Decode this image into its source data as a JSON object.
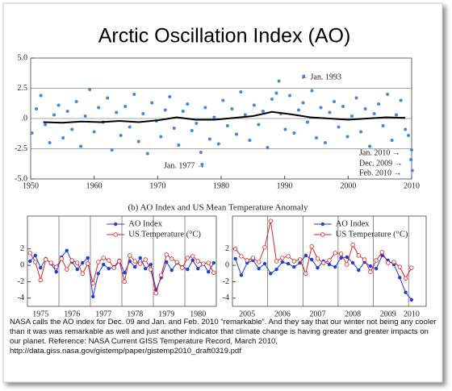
{
  "title": "Arctic Oscillation Index (AO)",
  "subtitle": "(b)  AO Index and US Mean Temperature Anomaly",
  "caption": "NASA calls the AO index for Dec. 09 and Jan. and Feb. 2010 “remarkable”. And they say that our winter not being any cooler than it was was remarkable as well and just another indicator that climate change is having greater and greater impacts on our planet.  Reference: NASA Current GISS Temperature Record, March 2010, http://data.giss.nasa.gov/gistemp/paper/gistemp2010_draft0319.pdf",
  "chart_data": [
    {
      "type": "scatter",
      "color": "#3d8ae0",
      "grid": true,
      "xlim": [
        1950,
        2010
      ],
      "xticks": [
        1950,
        1960,
        1970,
        1980,
        1990,
        2000,
        2010
      ],
      "ylim": [
        -5,
        5
      ],
      "yticks": [
        {
          "value": 5,
          "label": "5.0"
        },
        {
          "value": 2.5,
          "label": "2.5"
        },
        {
          "value": 0,
          "label": ".0"
        },
        {
          "value": -2.5,
          "label": "-2.5"
        },
        {
          "value": -5,
          "label": "-5.0"
        }
      ],
      "x": [
        1950.2,
        1950.9,
        1951.6,
        1952.3,
        1953.0,
        1953.7,
        1954.4,
        1955.1,
        1955.8,
        1956.5,
        1957.2,
        1957.9,
        1958.6,
        1959.3,
        1960.0,
        1960.7,
        1961.4,
        1962.1,
        1962.8,
        1963.5,
        1964.2,
        1964.9,
        1965.6,
        1966.3,
        1967.0,
        1967.7,
        1968.4,
        1969.1,
        1969.8,
        1970.5,
        1971.2,
        1971.9,
        1972.6,
        1973.3,
        1974.0,
        1974.7,
        1975.4,
        1976.1,
        1976.8,
        1977.5,
        1978.2,
        1978.9,
        1979.6,
        1980.3,
        1981.0,
        1981.7,
        1982.4,
        1983.1,
        1983.8,
        1984.5,
        1985.2,
        1985.9,
        1986.6,
        1987.3,
        1988.0,
        1988.7,
        1989.4,
        1990.1,
        1990.8,
        1991.5,
        1992.2,
        1992.9,
        1993.6,
        1994.3,
        1995.0,
        1995.7,
        1996.4,
        1997.1,
        1997.8,
        1998.5,
        1999.2,
        1999.9,
        2000.6,
        2001.3,
        2002.0,
        2002.7,
        2003.4,
        2004.1,
        2004.8,
        2005.5,
        2006.2,
        2006.9,
        2007.6,
        2008.3,
        2009.0,
        2009.5,
        1977.0,
        1989.1,
        1993.0,
        2009.9,
        2010.0,
        2010.1
      ],
      "values": [
        -1.2,
        0.8,
        1.9,
        -0.5,
        -2.0,
        0.3,
        1.1,
        -1.6,
        0.6,
        -0.9,
        1.4,
        -2.3,
        0.2,
        2.4,
        -1.1,
        0.9,
        -0.3,
        1.7,
        -2.6,
        0.5,
        -1.4,
        1.0,
        -0.7,
        2.0,
        -1.9,
        0.4,
        -2.9,
        1.3,
        -0.2,
        -1.5,
        0.7,
        1.8,
        -0.8,
        -2.2,
        0.6,
        1.2,
        -1.0,
        -0.4,
        -2.8,
        0.9,
        -1.7,
        0.1,
        -2.1,
        1.5,
        -0.6,
        0.8,
        -1.3,
        2.2,
        0.3,
        -1.8,
        1.1,
        -0.5,
        0.6,
        -2.4,
        1.6,
        2.1,
        0.4,
        -0.9,
        1.9,
        -1.2,
        0.7,
        1.3,
        -0.3,
        2.3,
        -1.6,
        0.9,
        -2.0,
        0.5,
        1.4,
        -0.7,
        1.0,
        -1.5,
        0.2,
        1.7,
        -1.1,
        0.8,
        -2.3,
        0.4,
        1.2,
        -0.6,
        2.0,
        -1.8,
        0.3,
        1.5,
        -0.9,
        -1.4,
        -3.8,
        3.1,
        3.5,
        -3.4,
        -2.6,
        -4.3
      ],
      "trend": {
        "color": "#000000",
        "x": [
          1952,
          1955,
          1958,
          1961,
          1964,
          1967,
          1970,
          1973,
          1976,
          1979,
          1982,
          1985,
          1988,
          1991,
          1994,
          1997,
          2000,
          2003,
          2006,
          2009
        ],
        "values": [
          -0.3,
          -0.35,
          -0.25,
          -0.3,
          -0.2,
          -0.3,
          -0.15,
          0.1,
          -0.1,
          -0.1,
          0.05,
          0.2,
          0.55,
          0.35,
          0.1,
          0.0,
          -0.1,
          0.0,
          0.1,
          0.05
        ]
      },
      "annotations": [
        "← Jan. 1993",
        "Jan. 1977 →",
        "Jan. 2010 →",
        "Dec. 2009 →",
        "Feb. 2010 →"
      ]
    },
    {
      "type": "line",
      "legend": "upper right",
      "ylim": [
        -5,
        6
      ],
      "yticks": [
        2,
        0,
        -2,
        -4
      ],
      "categories": [
        null,
        null,
        "1975",
        null,
        null,
        null,
        null,
        null,
        "1976",
        null,
        null,
        null,
        null,
        null,
        "1977",
        null,
        null,
        null,
        null,
        null,
        "1978",
        null,
        null,
        null,
        null,
        null,
        "1979",
        null,
        null,
        null,
        null,
        null,
        "1980",
        null,
        null,
        null
      ],
      "series": [
        {
          "name": "AO Index",
          "color": "#1f3fd6",
          "marker": "dot",
          "values": [
            0.5,
            1.2,
            -0.3,
            0.8,
            0.2,
            -0.8,
            1.0,
            1.8,
            0.4,
            -0.5,
            0.3,
            0.9,
            -3.8,
            -1.0,
            0.1,
            -0.4,
            -0.2,
            0.6,
            -0.9,
            0.5,
            -0.2,
            0.9,
            -0.4,
            0.1,
            -3.0,
            -1.5,
            0.4,
            -0.6,
            0.3,
            -0.2,
            -0.5,
            0.6,
            -0.4,
            0.2,
            -0.8,
            0.3
          ]
        },
        {
          "name": "US Temperature (°C)",
          "color": "#e02020",
          "marker": "circle",
          "values": [
            1.5,
            0.4,
            -1.8,
            0.7,
            0.3,
            -0.2,
            0.8,
            -0.5,
            0.6,
            0.3,
            -1.0,
            0.2,
            -2.2,
            0.4,
            0.9,
            0.6,
            -0.3,
            0.5,
            -2.0,
            1.2,
            0.5,
            0.2,
            0.7,
            -0.5,
            -3.4,
            -1.2,
            1.3,
            0.8,
            0.4,
            -0.3,
            0.9,
            1.1,
            0.5,
            0.2,
            0.3,
            -0.9
          ]
        }
      ]
    },
    {
      "type": "line",
      "legend": "upper right",
      "ylim": [
        -5,
        6
      ],
      "yticks": [
        2,
        0,
        -2,
        -4
      ],
      "categories": [
        null,
        null,
        "2005",
        null,
        null,
        null,
        null,
        null,
        "2006",
        null,
        null,
        null,
        null,
        null,
        "2007",
        null,
        null,
        null,
        null,
        null,
        "2008",
        null,
        null,
        null,
        null,
        null,
        "2009",
        null,
        null,
        null,
        "2010",
        null,
        null
      ],
      "series": [
        {
          "name": "AO Index",
          "color": "#1f3fd6",
          "marker": "dot",
          "values": [
            0.8,
            -1.2,
            0.3,
            0.6,
            -0.4,
            0.2,
            -1.0,
            -0.5,
            0.4,
            0.2,
            -0.2,
            0.3,
            1.2,
            0.7,
            -0.3,
            0.5,
            0.1,
            -0.2,
            0.9,
            1.0,
            0.3,
            -0.6,
            0.4,
            -0.1,
            -0.4,
            1.2,
            0.6,
            0.1,
            -1.5,
            -3.3,
            -4.2,
            null,
            null
          ]
        },
        {
          "name": "US Temperature (°C)",
          "color": "#e02020",
          "marker": "circle",
          "values": [
            2.0,
            1.1,
            0.6,
            0.9,
            0.4,
            2.2,
            5.4,
            0.5,
            0.9,
            1.1,
            0.5,
            0.7,
            -1.0,
            2.3,
            0.8,
            0.3,
            0.6,
            1.5,
            1.4,
            0.1,
            2.5,
            1.2,
            0.7,
            -0.8,
            0.6,
            1.6,
            0.3,
            0.4,
            -0.2,
            -1.6,
            -0.3,
            null,
            null
          ]
        }
      ]
    }
  ]
}
